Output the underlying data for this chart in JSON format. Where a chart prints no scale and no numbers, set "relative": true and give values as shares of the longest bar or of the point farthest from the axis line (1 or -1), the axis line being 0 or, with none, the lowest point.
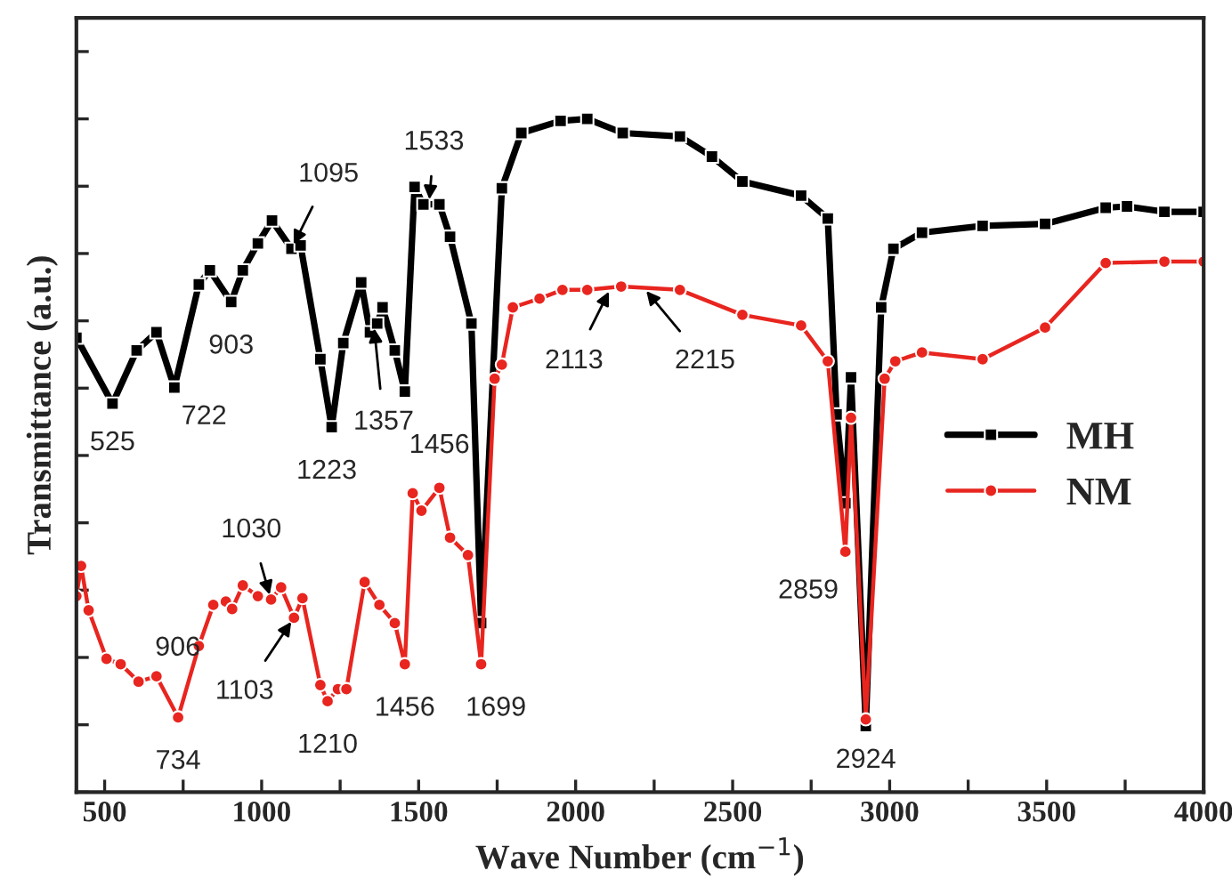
{
  "chart_data": {
    "type": "line",
    "relative": true,
    "xlabel": "Wave Number (cm$^{−1}$)",
    "ylabel": "Transmittance (a.u.)",
    "xlim": [
      410,
      4000
    ],
    "xticks": [
      500,
      {
        "value": 750,
        "label": null
      },
      1000,
      {
        "value": 1250,
        "label": null
      },
      1500,
      {
        "value": 1750,
        "label": null
      },
      2000,
      {
        "value": 2250,
        "label": null
      },
      2500,
      {
        "value": 2750,
        "label": null
      },
      3000,
      {
        "value": 3250,
        "label": null
      },
      3500,
      {
        "value": 3750,
        "label": null
      },
      4000
    ],
    "legend": "right",
    "grid": false,
    "line_style": "solid",
    "series": [
      {
        "name": "MH",
        "color": "#000000",
        "marker": "square",
        "x": [
          410,
          525,
          602,
          665,
          722,
          800,
          835,
          903,
          940,
          988,
          1033,
          1095,
          1124,
          1187,
          1223,
          1260,
          1317,
          1345,
          1368,
          1385,
          1424,
          1456,
          1487,
          1515,
          1566,
          1600,
          1668,
          1699,
          1765,
          1827,
          1952,
          2037,
          2150,
          2332,
          2434,
          2531,
          2718,
          2803,
          2831,
          2859,
          2877,
          2924,
          2973,
          3012,
          3103,
          3296,
          3495,
          3688,
          3756,
          3875,
          4000
        ],
        "values": [
          0.675,
          0.577,
          0.656,
          0.683,
          0.601,
          0.754,
          0.775,
          0.728,
          0.775,
          0.815,
          0.849,
          0.807,
          0.812,
          0.643,
          0.542,
          0.667,
          0.757,
          0.683,
          0.696,
          0.72,
          0.656,
          0.595,
          0.899,
          0.873,
          0.873,
          0.825,
          0.696,
          0.251,
          0.897,
          0.979,
          0.997,
          1.0,
          0.979,
          0.974,
          0.944,
          0.907,
          0.886,
          0.852,
          0.561,
          0.429,
          0.616,
          0.098,
          0.72,
          0.807,
          0.831,
          0.841,
          0.844,
          0.868,
          0.87,
          0.862,
          0.862
        ]
      },
      {
        "name": "NM",
        "color": "#e8251f",
        "marker": "circle",
        "x": [
          410,
          425,
          449,
          506,
          551,
          608,
          665,
          734,
          800,
          846,
          886,
          906,
          940,
          988,
          1030,
          1062,
          1103,
          1130,
          1187,
          1210,
          1243,
          1270,
          1328,
          1375,
          1424,
          1456,
          1481,
          1509,
          1566,
          1600,
          1657,
          1699,
          1742,
          1765,
          1800,
          1885,
          1958,
          2037,
          2145,
          2332,
          2531,
          2718,
          2803,
          2859,
          2877,
          2924,
          2984,
          3018,
          3103,
          3296,
          3495,
          3688,
          3875,
          4000
        ],
        "values": [
          0.291,
          0.336,
          0.27,
          0.198,
          0.19,
          0.164,
          0.172,
          0.111,
          0.217,
          0.278,
          0.283,
          0.272,
          0.307,
          0.291,
          0.286,
          0.304,
          0.259,
          0.288,
          0.159,
          0.135,
          0.153,
          0.153,
          0.312,
          0.278,
          0.251,
          0.19,
          0.444,
          0.418,
          0.452,
          0.378,
          0.352,
          0.19,
          0.614,
          0.635,
          0.72,
          0.733,
          0.746,
          0.746,
          0.751,
          0.746,
          0.709,
          0.693,
          0.64,
          0.357,
          0.556,
          0.108,
          0.614,
          0.64,
          0.653,
          0.643,
          0.69,
          0.786,
          0.788,
          0.788
        ]
      }
    ],
    "annotations": [
      {
        "text": "525",
        "x": 525,
        "y": 0.577
      },
      {
        "text": "722",
        "x": 722,
        "y": 0.601
      },
      {
        "text": "903",
        "x": 903,
        "y": 0.728
      },
      {
        "text": "1095",
        "x": 1095,
        "y": 0.807
      },
      {
        "text": "1223",
        "x": 1223,
        "y": 0.542
      },
      {
        "text": "1357",
        "x": 1357,
        "y": 0.696
      },
      {
        "text": "1456",
        "x": 1456,
        "y": 0.595
      },
      {
        "text": "1533",
        "x": 1533,
        "y": 0.873
      },
      {
        "text": "2113",
        "x": 2113,
        "y": 0.75
      },
      {
        "text": "2215",
        "x": 2215,
        "y": 0.75
      },
      {
        "text": "2859",
        "x": 2859,
        "y": 0.357
      },
      {
        "text": "2924",
        "x": 2924,
        "y": 0.098
      },
      {
        "text": "734",
        "x": 734,
        "y": 0.111
      },
      {
        "text": "906",
        "x": 906,
        "y": 0.272
      },
      {
        "text": "1030",
        "x": 1030,
        "y": 0.286
      },
      {
        "text": "1103",
        "x": 1103,
        "y": 0.259
      },
      {
        "text": "1210",
        "x": 1210,
        "y": 0.135
      },
      {
        "text": "1456",
        "x": 1456,
        "y": 0.19
      },
      {
        "text": "1699",
        "x": 1699,
        "y": 0.19
      }
    ]
  }
}
